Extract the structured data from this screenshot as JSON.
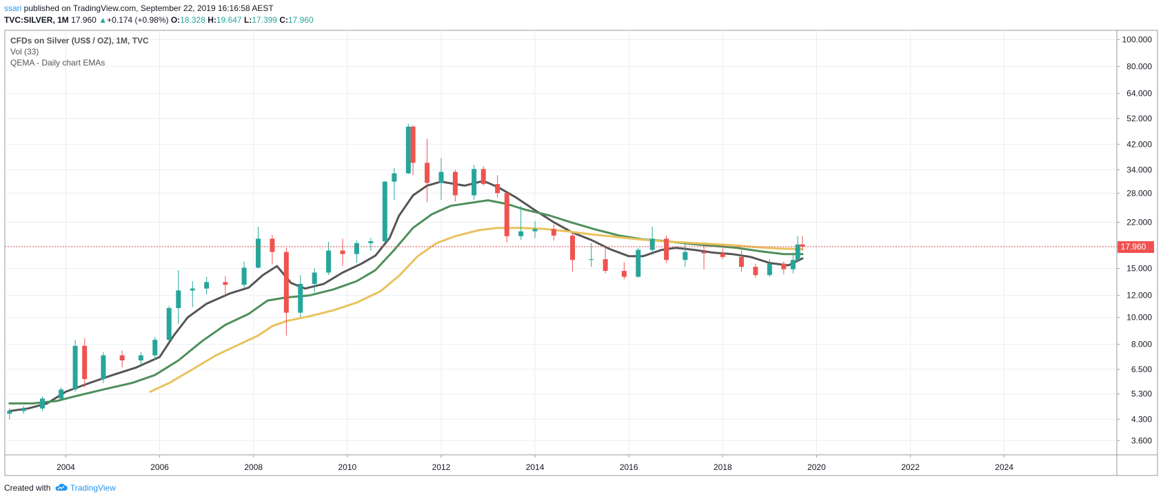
{
  "header": {
    "username": "ssari",
    "published_text": " published on TradingView.com, September 22, 2019 16:16:58 AEST"
  },
  "ohlc": {
    "symbol": "TVC:SILVER, 1M",
    "last": "17.960",
    "change": "+0.174 (+0.98%)",
    "o_label": "O:",
    "o": "18.328",
    "h_label": "H:",
    "h": "19.647",
    "l_label": "L:",
    "l": "17.399",
    "c_label": "C:",
    "c": "17.960"
  },
  "legend": {
    "title": "CFDs on Silver (US$ / OZ), 1M, TVC",
    "vol": "Vol (33)",
    "indicator": "QEMA - Daily chart EMAs"
  },
  "footer": {
    "created_with": "Created with",
    "brand": "TradingView"
  },
  "colors": {
    "up": "#26a69a",
    "down": "#ef5350",
    "ema_fast": "#555555",
    "ema_mid": "#4e8f5a",
    "ema_slow": "#e9c25d",
    "price_line": "#ef5350",
    "grid": "#e9eef4"
  },
  "chart_data": {
    "type": "candlestick",
    "scale": "log",
    "ylim": [
      3.2,
      108
    ],
    "y_ticks": [
      "100.000",
      "80.000",
      "64.000",
      "52.000",
      "42.000",
      "34.000",
      "28.000",
      "22.000",
      "18.000",
      "15.000",
      "12.000",
      "10.000",
      "8.000",
      "6.500",
      "5.300",
      "4.300",
      "3.600"
    ],
    "x_ticks": [
      "2004",
      "2006",
      "2008",
      "2010",
      "2012",
      "2014",
      "2016",
      "2018",
      "2020",
      "2022",
      "2024"
    ],
    "xlim": [
      2002.7,
      2026.4
    ],
    "last_price": "17.960",
    "candles": [
      [
        2002.8,
        4.5,
        4.7,
        4.3,
        4.6
      ],
      [
        2003.1,
        4.6,
        4.8,
        4.5,
        4.7
      ],
      [
        2003.5,
        4.7,
        5.2,
        4.6,
        5.1
      ],
      [
        2003.9,
        5.1,
        5.6,
        5.0,
        5.5
      ],
      [
        2004.2,
        5.5,
        8.3,
        5.4,
        7.9
      ],
      [
        2004.4,
        7.9,
        8.4,
        5.6,
        6.0
      ],
      [
        2004.8,
        6.0,
        7.5,
        5.8,
        7.3
      ],
      [
        2005.2,
        7.3,
        7.6,
        6.6,
        7.0
      ],
      [
        2005.6,
        7.0,
        7.5,
        6.7,
        7.3
      ],
      [
        2005.9,
        7.3,
        8.5,
        7.0,
        8.3
      ],
      [
        2006.2,
        8.3,
        11.0,
        8.2,
        10.8
      ],
      [
        2006.4,
        10.8,
        14.8,
        9.5,
        12.5
      ],
      [
        2006.7,
        12.5,
        13.5,
        10.9,
        12.7
      ],
      [
        2007.0,
        12.7,
        14.0,
        12.1,
        13.4
      ],
      [
        2007.4,
        13.4,
        14.1,
        12.0,
        13.1
      ],
      [
        2007.8,
        13.1,
        15.9,
        12.8,
        15.1
      ],
      [
        2008.1,
        15.1,
        21.2,
        15.0,
        19.2
      ],
      [
        2008.4,
        19.2,
        19.8,
        15.5,
        17.2
      ],
      [
        2008.7,
        17.2,
        17.8,
        8.6,
        10.4
      ],
      [
        2009.0,
        10.4,
        14.2,
        10.0,
        13.2
      ],
      [
        2009.3,
        13.2,
        15.0,
        12.3,
        14.5
      ],
      [
        2009.6,
        14.5,
        18.7,
        14.2,
        17.4
      ],
      [
        2009.9,
        17.4,
        19.2,
        15.3,
        16.9
      ],
      [
        2010.2,
        16.9,
        18.9,
        15.7,
        18.5
      ],
      [
        2010.5,
        18.5,
        19.3,
        17.4,
        18.8
      ],
      [
        2010.8,
        18.8,
        31.0,
        18.6,
        30.8
      ],
      [
        2011.0,
        30.8,
        34.5,
        26.4,
        33.0
      ],
      [
        2011.3,
        33.0,
        49.8,
        32.8,
        48.6
      ],
      [
        2011.4,
        48.6,
        49.2,
        32.5,
        36.0
      ],
      [
        2011.7,
        36.0,
        43.9,
        26.0,
        30.5
      ],
      [
        2012.0,
        30.5,
        37.5,
        26.5,
        33.4
      ],
      [
        2012.3,
        33.4,
        34.0,
        26.1,
        27.5
      ],
      [
        2012.7,
        27.5,
        35.4,
        26.5,
        34.2
      ],
      [
        2012.9,
        34.2,
        35.0,
        29.8,
        30.2
      ],
      [
        2013.2,
        30.2,
        32.5,
        27.0,
        28.0
      ],
      [
        2013.4,
        28.0,
        28.2,
        18.6,
        19.6
      ],
      [
        2013.7,
        19.6,
        25.2,
        19.0,
        20.4
      ],
      [
        2014.0,
        20.4,
        22.2,
        19.3,
        20.8
      ],
      [
        2014.4,
        20.8,
        21.6,
        18.9,
        19.7
      ],
      [
        2014.8,
        19.7,
        20.0,
        14.6,
        16.1
      ],
      [
        2015.2,
        16.1,
        18.5,
        15.2,
        16.2
      ],
      [
        2015.5,
        16.2,
        17.8,
        14.4,
        14.7
      ],
      [
        2015.9,
        14.7,
        15.8,
        13.7,
        14.0
      ],
      [
        2016.2,
        14.0,
        17.8,
        13.9,
        17.5
      ],
      [
        2016.5,
        17.5,
        21.2,
        17.0,
        19.2
      ],
      [
        2016.8,
        19.2,
        19.7,
        15.7,
        16.1
      ],
      [
        2017.2,
        16.1,
        18.5,
        15.2,
        17.2
      ],
      [
        2017.6,
        17.2,
        18.2,
        14.9,
        17.0
      ],
      [
        2018.0,
        17.0,
        17.7,
        16.2,
        16.5
      ],
      [
        2018.4,
        16.5,
        17.4,
        14.6,
        15.2
      ],
      [
        2018.7,
        15.2,
        15.6,
        13.9,
        14.2
      ],
      [
        2019.0,
        14.2,
        16.2,
        14.0,
        15.6
      ],
      [
        2019.3,
        15.6,
        15.9,
        14.3,
        14.9
      ],
      [
        2019.5,
        14.9,
        17.1,
        14.4,
        16.1
      ],
      [
        2019.6,
        16.1,
        19.6,
        15.9,
        18.3
      ],
      [
        2019.7,
        18.3,
        19.6,
        17.4,
        17.96
      ]
    ],
    "series": [
      {
        "values": [
          [
            2002.8,
            4.6
          ],
          [
            2003.2,
            4.7
          ],
          [
            2003.6,
            4.9
          ],
          [
            2004.0,
            5.4
          ],
          [
            2004.5,
            5.8
          ],
          [
            2005.0,
            6.2
          ],
          [
            2005.5,
            6.6
          ],
          [
            2006.0,
            7.2
          ],
          [
            2006.3,
            8.6
          ],
          [
            2006.6,
            10.0
          ],
          [
            2007.0,
            11.2
          ],
          [
            2007.5,
            12.2
          ],
          [
            2007.9,
            12.8
          ],
          [
            2008.2,
            14.2
          ],
          [
            2008.5,
            15.3
          ],
          [
            2008.8,
            13.3
          ],
          [
            2009.1,
            12.7
          ],
          [
            2009.5,
            13.2
          ],
          [
            2009.9,
            14.5
          ],
          [
            2010.3,
            15.6
          ],
          [
            2010.6,
            16.7
          ],
          [
            2010.9,
            19.3
          ],
          [
            2011.1,
            23.2
          ],
          [
            2011.4,
            27.5
          ],
          [
            2011.7,
            29.8
          ],
          [
            2012.0,
            30.8
          ],
          [
            2012.5,
            29.8
          ],
          [
            2012.9,
            31.0
          ],
          [
            2013.2,
            29.5
          ],
          [
            2013.6,
            27.0
          ],
          [
            2014.0,
            24.3
          ],
          [
            2014.4,
            22.0
          ],
          [
            2014.8,
            20.2
          ],
          [
            2015.2,
            19.0
          ],
          [
            2015.6,
            17.6
          ],
          [
            2016.0,
            16.6
          ],
          [
            2016.3,
            16.6
          ],
          [
            2016.7,
            17.5
          ],
          [
            2017.0,
            17.8
          ],
          [
            2017.4,
            17.5
          ],
          [
            2017.8,
            17.1
          ],
          [
            2018.2,
            16.9
          ],
          [
            2018.6,
            16.5
          ],
          [
            2019.0,
            15.7
          ],
          [
            2019.4,
            15.4
          ],
          [
            2019.7,
            16.3
          ]
        ]
      },
      {
        "values": [
          [
            2002.8,
            4.9
          ],
          [
            2003.3,
            4.9
          ],
          [
            2003.8,
            5.0
          ],
          [
            2004.2,
            5.2
          ],
          [
            2004.8,
            5.5
          ],
          [
            2005.4,
            5.8
          ],
          [
            2005.9,
            6.2
          ],
          [
            2006.4,
            7.0
          ],
          [
            2006.9,
            8.2
          ],
          [
            2007.4,
            9.4
          ],
          [
            2007.9,
            10.3
          ],
          [
            2008.3,
            11.5
          ],
          [
            2008.7,
            11.8
          ],
          [
            2009.2,
            12.0
          ],
          [
            2009.7,
            12.6
          ],
          [
            2010.2,
            13.5
          ],
          [
            2010.6,
            14.8
          ],
          [
            2011.0,
            17.5
          ],
          [
            2011.4,
            21.0
          ],
          [
            2011.8,
            23.5
          ],
          [
            2012.2,
            25.2
          ],
          [
            2012.6,
            25.8
          ],
          [
            2013.0,
            26.4
          ],
          [
            2013.4,
            25.6
          ],
          [
            2013.8,
            24.4
          ],
          [
            2014.3,
            23.3
          ],
          [
            2014.8,
            21.9
          ],
          [
            2015.3,
            20.7
          ],
          [
            2015.8,
            19.7
          ],
          [
            2016.3,
            19.1
          ],
          [
            2016.8,
            18.8
          ],
          [
            2017.3,
            18.4
          ],
          [
            2017.8,
            18.1
          ],
          [
            2018.3,
            17.8
          ],
          [
            2018.8,
            17.3
          ],
          [
            2019.3,
            16.9
          ],
          [
            2019.7,
            16.9
          ]
        ]
      },
      {
        "values": [
          [
            2005.8,
            5.4
          ],
          [
            2006.2,
            5.8
          ],
          [
            2006.7,
            6.5
          ],
          [
            2007.2,
            7.3
          ],
          [
            2007.7,
            8.0
          ],
          [
            2008.1,
            8.6
          ],
          [
            2008.4,
            9.3
          ],
          [
            2008.7,
            9.7
          ],
          [
            2009.2,
            10.1
          ],
          [
            2009.7,
            10.6
          ],
          [
            2010.2,
            11.3
          ],
          [
            2010.7,
            12.4
          ],
          [
            2011.1,
            14.1
          ],
          [
            2011.5,
            16.6
          ],
          [
            2011.9,
            18.5
          ],
          [
            2012.3,
            19.6
          ],
          [
            2012.8,
            20.6
          ],
          [
            2013.2,
            21.0
          ],
          [
            2013.7,
            21.0
          ],
          [
            2014.2,
            20.8
          ],
          [
            2014.7,
            20.4
          ],
          [
            2015.2,
            19.9
          ],
          [
            2015.7,
            19.5
          ],
          [
            2016.2,
            19.1
          ],
          [
            2016.7,
            18.8
          ],
          [
            2017.2,
            18.6
          ],
          [
            2017.7,
            18.4
          ],
          [
            2018.2,
            18.2
          ],
          [
            2018.7,
            17.9
          ],
          [
            2019.2,
            17.7
          ],
          [
            2019.7,
            17.6
          ]
        ]
      }
    ]
  }
}
